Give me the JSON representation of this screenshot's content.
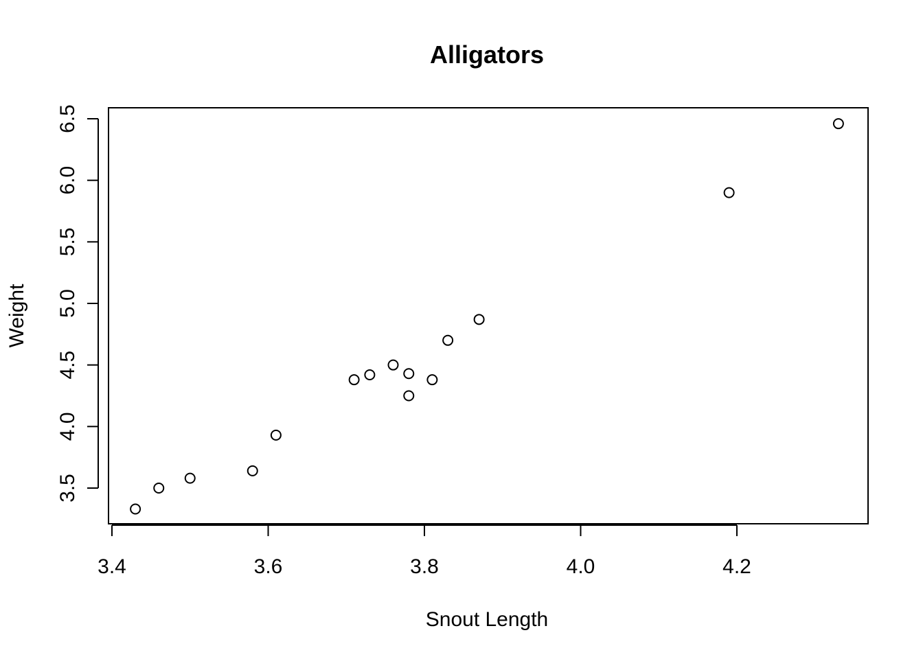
{
  "chart_data": {
    "type": "scatter",
    "title": "Alligators",
    "xlabel": "Snout Length",
    "ylabel": "Weight",
    "xlim": [
      3.4,
      4.33
    ],
    "ylim": [
      3.3,
      6.5
    ],
    "x_ticks": [
      3.4,
      3.6,
      3.8,
      4.0,
      4.2
    ],
    "x_tick_labels": [
      "3.4",
      "3.6",
      "3.8",
      "4.0",
      "4.2"
    ],
    "y_ticks": [
      3.5,
      4.0,
      4.5,
      5.0,
      5.5,
      6.0,
      6.5
    ],
    "y_tick_labels": [
      "3.5",
      "4.0",
      "4.5",
      "5.0",
      "5.5",
      "6.0",
      "6.5"
    ],
    "grid": false,
    "marker": "open-circle",
    "series": [
      {
        "x": [
          3.43,
          3.46,
          3.5,
          3.58,
          3.61,
          3.71,
          3.73,
          3.76,
          3.78,
          3.78,
          3.81,
          3.83,
          3.87,
          4.19,
          4.33
        ],
        "y": [
          3.33,
          3.5,
          3.58,
          3.64,
          3.93,
          4.38,
          4.42,
          4.5,
          4.43,
          4.25,
          4.38,
          4.7,
          4.87,
          5.9,
          6.46
        ]
      }
    ]
  }
}
